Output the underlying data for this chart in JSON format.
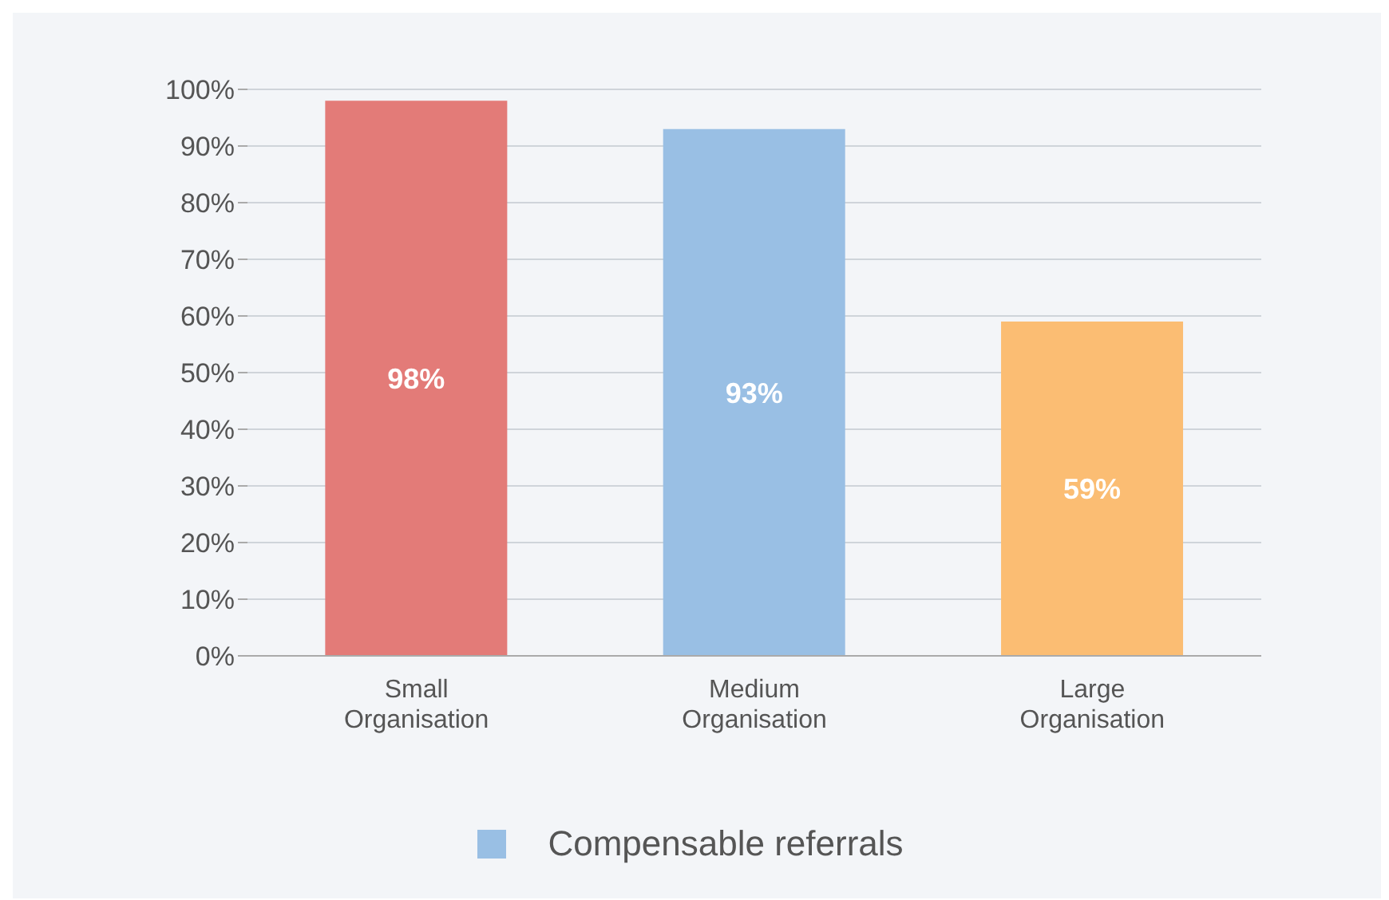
{
  "chart_data": {
    "type": "bar",
    "categories": [
      "Small Organisation",
      "Medium Organisation",
      "Large Organisation"
    ],
    "series": [
      {
        "name": "Compensable referrals",
        "color": "#99bfe4",
        "colors": [
          "#e37b78",
          "#99bfe4",
          "#fbbd73"
        ],
        "values": [
          98,
          93,
          59
        ],
        "value_labels": [
          "98%",
          "93%",
          "59%"
        ]
      }
    ],
    "ylim": [
      0,
      100
    ],
    "yticks": [
      {
        "value": 0,
        "label": "0%"
      },
      {
        "value": 10,
        "label": "10%"
      },
      {
        "value": 20,
        "label": "20%"
      },
      {
        "value": 30,
        "label": "30%"
      },
      {
        "value": 40,
        "label": "40%"
      },
      {
        "value": 50,
        "label": "50%"
      },
      {
        "value": 60,
        "label": "60%"
      },
      {
        "value": 70,
        "label": "70%"
      },
      {
        "value": 80,
        "label": "80%"
      },
      {
        "value": 90,
        "label": "90%"
      },
      {
        "value": 100,
        "label": "100%"
      }
    ],
    "grid": "y",
    "legend": "bottom"
  }
}
